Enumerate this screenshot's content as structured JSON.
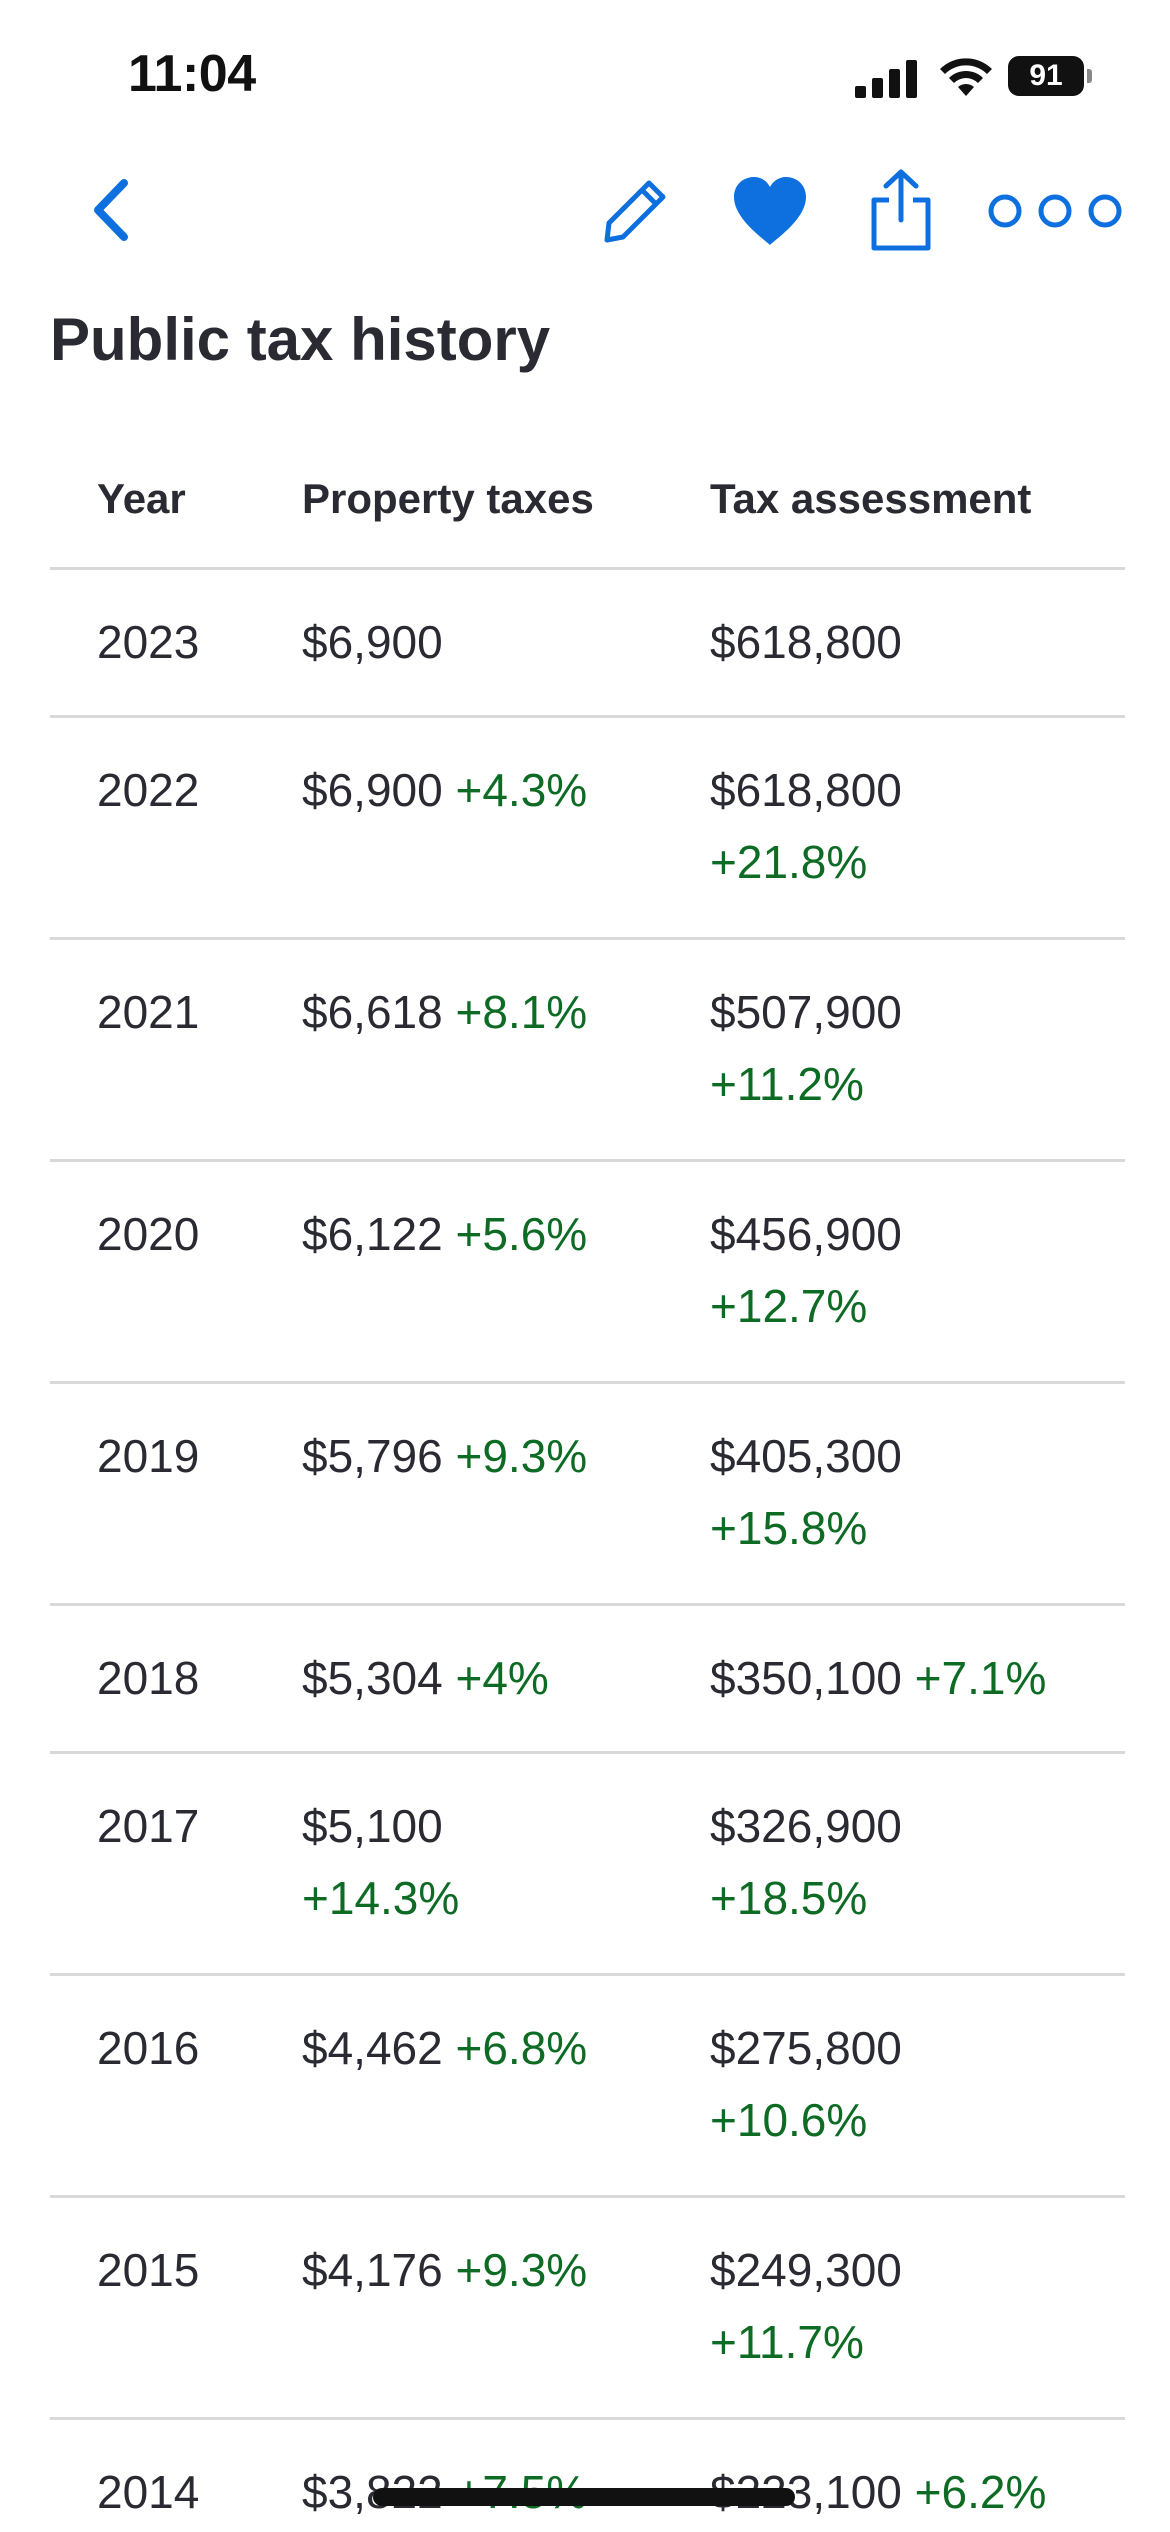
{
  "status_bar": {
    "time": "11:04",
    "battery": "91"
  },
  "nav": {
    "icons": [
      "chevron-left-icon",
      "pencil-icon",
      "heart-icon",
      "share-icon",
      "more-icon"
    ],
    "accent_color": "#0e6fde"
  },
  "page": {
    "title": "Public tax history"
  },
  "table": {
    "headers": {
      "year": "Year",
      "property_taxes": "Property taxes",
      "tax_assessment": "Tax assessment"
    },
    "rows": [
      {
        "year": "2023",
        "tax": "$6,900",
        "tax_change": "",
        "assessment": "$618,800",
        "assessment_change": ""
      },
      {
        "year": "2022",
        "tax": "$6,900",
        "tax_change": "+4.3%",
        "assessment": "$618,800",
        "assessment_change": "+21.8%"
      },
      {
        "year": "2021",
        "tax": "$6,618",
        "tax_change": "+8.1%",
        "assessment": "$507,900",
        "assessment_change": "+11.2%"
      },
      {
        "year": "2020",
        "tax": "$6,122",
        "tax_change": "+5.6%",
        "assessment": "$456,900",
        "assessment_change": "+12.7%"
      },
      {
        "year": "2019",
        "tax": "$5,796",
        "tax_change": "+9.3%",
        "assessment": "$405,300",
        "assessment_change": "+15.8%"
      },
      {
        "year": "2018",
        "tax": "$5,304",
        "tax_change": "+4%",
        "assessment": "$350,100",
        "assessment_change": "+7.1%"
      },
      {
        "year": "2017",
        "tax": "$5,100",
        "tax_change": "+14.3%",
        "assessment": "$326,900",
        "assessment_change": "+18.5%"
      },
      {
        "year": "2016",
        "tax": "$4,462",
        "tax_change": "+6.8%",
        "assessment": "$275,800",
        "assessment_change": "+10.6%"
      },
      {
        "year": "2015",
        "tax": "$4,176",
        "tax_change": "+9.3%",
        "assessment": "$249,300",
        "assessment_change": "+11.7%"
      },
      {
        "year": "2014",
        "tax": "$3,822",
        "tax_change": "+7.5%",
        "assessment": "$223,100",
        "assessment_change": "+6.2%"
      }
    ],
    "change_color": "#0d6b24"
  }
}
